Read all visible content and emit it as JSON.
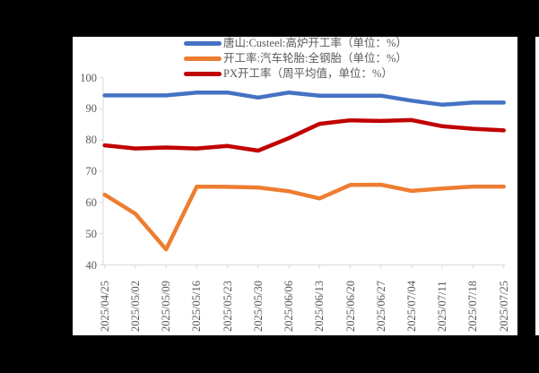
{
  "chart_data": {
    "type": "line",
    "title": "",
    "xlabel": "",
    "ylabel": "",
    "ylim": [
      40,
      100
    ],
    "yticks": [
      40,
      50,
      60,
      70,
      80,
      90,
      100
    ],
    "grid": false,
    "legend_position": "top",
    "categories": [
      "2025/04/25",
      "2025/05/02",
      "2025/05/09",
      "2025/05/16",
      "2025/05/23",
      "2025/05/30",
      "2025/06/06",
      "2025/06/13",
      "2025/06/20",
      "2025/06/27",
      "2025/07/04",
      "2025/07/11",
      "2025/07/18",
      "2025/07/25"
    ],
    "series": [
      {
        "name": "唐山:Custeel:高炉开工率（单位：%）",
        "color": "#4472C4",
        "values": [
          94.3,
          94.3,
          94.3,
          95.2,
          95.2,
          93.6,
          95.2,
          94.2,
          94.2,
          94.2,
          92.6,
          91.3,
          92.0,
          92.0
        ]
      },
      {
        "name": "开工率:汽车轮胎:全钢胎（单位：%）",
        "color": "#ED7D31",
        "values": [
          62.5,
          56.4,
          45.0,
          65.1,
          65.0,
          64.8,
          63.6,
          61.3,
          65.6,
          65.7,
          63.7,
          64.5,
          65.1,
          65.1
        ]
      },
      {
        "name": "PX开工率（周平均值，单位：%）",
        "color": "#C00000",
        "values": [
          78.3,
          77.3,
          77.6,
          77.3,
          78.1,
          76.6,
          80.6,
          85.2,
          86.3,
          86.1,
          86.4,
          84.4,
          83.6,
          83.1
        ]
      }
    ]
  },
  "legend": [
    {
      "label": "唐山:Custeel:高炉开工率（单位：%）",
      "color": "#4472C4"
    },
    {
      "label": "开工率:汽车轮胎:全钢胎（单位：%）",
      "color": "#ED7D31"
    },
    {
      "label": "PX开工率（周平均值，单位：%）",
      "color": "#C00000"
    }
  ],
  "axis": {
    "y_labels": [
      "100",
      "90",
      "80",
      "70",
      "60",
      "50",
      "40"
    ],
    "x_labels": [
      "2025/04/25",
      "2025/05/02",
      "2025/05/09",
      "2025/05/16",
      "2025/05/23",
      "2025/05/30",
      "2025/06/06",
      "2025/06/13",
      "2025/06/20",
      "2025/06/27",
      "2025/07/04",
      "2025/07/11",
      "2025/07/18",
      "2025/07/25"
    ]
  },
  "colors": {
    "axis_line": "#D9D9D9",
    "tick_text": "#595959",
    "background": "#FFFFFF",
    "frame": "#000000"
  }
}
